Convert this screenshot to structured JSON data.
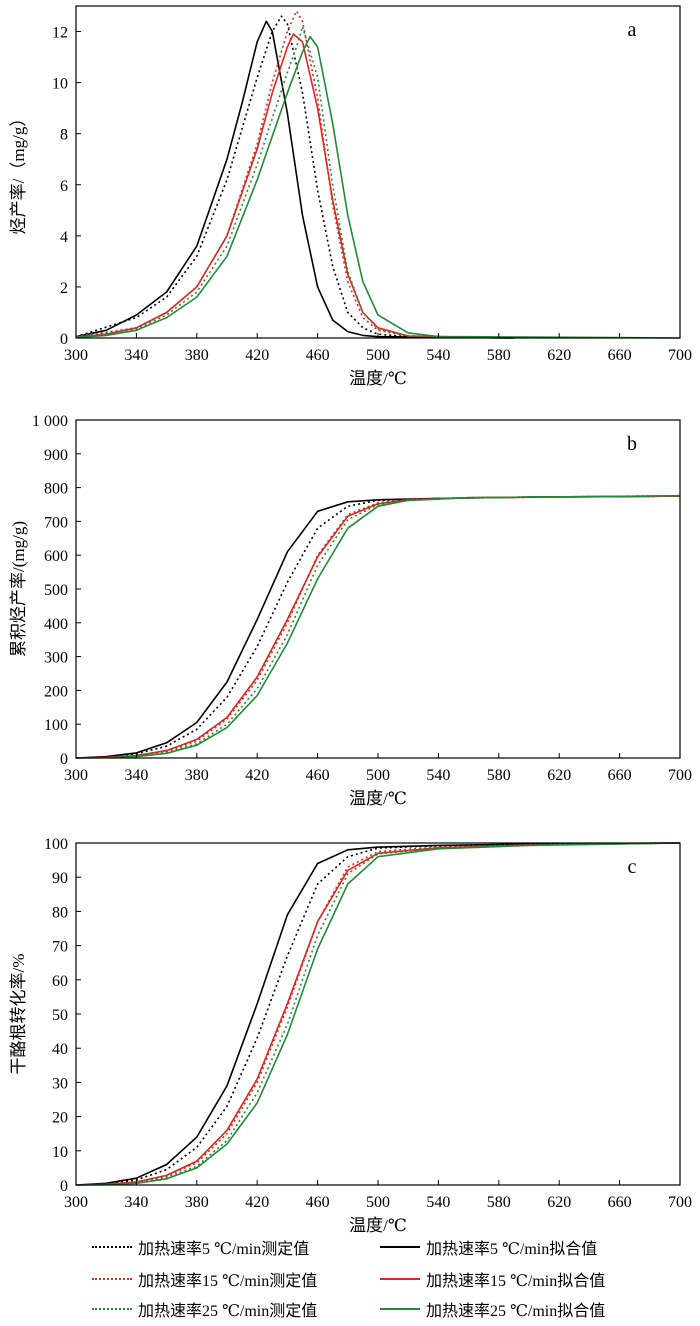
{
  "colors": {
    "black": "#000000",
    "red": "#d42a22",
    "green": "#23893a"
  },
  "chart_data": [
    {
      "type": "line",
      "panel_label": "a",
      "xlabel": "温度/℃",
      "ylabel": "烃产率/（mg/g）",
      "xlim": [
        300,
        700
      ],
      "ylim": [
        0,
        13
      ],
      "xticks": [
        300,
        340,
        380,
        420,
        460,
        500,
        540,
        580,
        620,
        660,
        700
      ],
      "xtick_labels": [
        "300",
        "340",
        "380",
        "420",
        "460",
        "500",
        "540",
        "580",
        "620",
        "660",
        "700"
      ],
      "yticks": [
        0,
        2,
        4,
        6,
        8,
        10,
        12
      ],
      "ytick_labels": [
        "0",
        "2",
        "4",
        "6",
        "8",
        "10",
        "12"
      ],
      "series": [
        {
          "name": "加热速率5 ℃/min测定值",
          "color": "black",
          "style": "dotted",
          "x": [
            300,
            340,
            360,
            380,
            400,
            420,
            430,
            436,
            440,
            450,
            460,
            470,
            480,
            490,
            500,
            520,
            590
          ],
          "y": [
            0.05,
            0.8,
            1.6,
            3.2,
            6.2,
            10.2,
            12.0,
            12.6,
            12.3,
            9.6,
            5.8,
            2.8,
            1.0,
            0.4,
            0.15,
            0.05,
            0.0
          ]
        },
        {
          "name": "加热速率5 ℃/min拟合值",
          "color": "black",
          "style": "solid",
          "x": [
            300,
            320,
            340,
            360,
            380,
            400,
            410,
            420,
            426,
            430,
            440,
            450,
            460,
            470,
            480,
            490,
            500,
            590
          ],
          "y": [
            0.05,
            0.3,
            0.9,
            1.8,
            3.6,
            7.0,
            9.2,
            11.6,
            12.4,
            12.0,
            8.8,
            4.8,
            2.0,
            0.7,
            0.25,
            0.1,
            0.05,
            0.0
          ]
        },
        {
          "name": "加热速率15 ℃/min测定值",
          "color": "red",
          "style": "dotted",
          "x": [
            300,
            340,
            360,
            380,
            400,
            420,
            430,
            440,
            446,
            450,
            460,
            470,
            480,
            490,
            500,
            520,
            590
          ],
          "y": [
            0.05,
            0.4,
            1.0,
            2.0,
            4.0,
            7.6,
            10.0,
            12.0,
            12.8,
            12.4,
            9.4,
            5.2,
            2.2,
            0.8,
            0.3,
            0.08,
            0.0
          ]
        },
        {
          "name": "加热速率15 ℃/min拟合值",
          "color": "red",
          "style": "solid",
          "x": [
            300,
            320,
            340,
            360,
            380,
            400,
            420,
            430,
            440,
            444,
            450,
            460,
            470,
            480,
            490,
            500,
            520,
            590
          ],
          "y": [
            0.03,
            0.15,
            0.4,
            1.0,
            2.0,
            4.0,
            7.4,
            9.6,
            11.4,
            11.9,
            11.6,
            9.0,
            5.4,
            2.5,
            1.0,
            0.4,
            0.08,
            0.0
          ]
        },
        {
          "name": "加热速率25 ℃/min测定值",
          "color": "green",
          "style": "dotted",
          "x": [
            300,
            340,
            360,
            380,
            400,
            420,
            440,
            446,
            450,
            460,
            470,
            480,
            490,
            500,
            520,
            590
          ],
          "y": [
            0.05,
            0.35,
            0.9,
            1.8,
            3.6,
            6.8,
            10.4,
            11.4,
            12.2,
            10.2,
            6.0,
            2.6,
            1.0,
            0.35,
            0.08,
            0.0
          ]
        },
        {
          "name": "加热速率25 ℃/min拟合值",
          "color": "green",
          "style": "solid",
          "x": [
            300,
            320,
            340,
            360,
            380,
            400,
            420,
            440,
            450,
            455,
            460,
            470,
            480,
            490,
            500,
            520,
            540,
            700
          ],
          "y": [
            0.02,
            0.1,
            0.3,
            0.8,
            1.6,
            3.2,
            6.2,
            9.6,
            11.2,
            11.8,
            11.4,
            8.4,
            4.8,
            2.2,
            0.9,
            0.2,
            0.06,
            0.0
          ]
        }
      ]
    },
    {
      "type": "line",
      "panel_label": "b",
      "xlabel": "温度/℃",
      "ylabel": "累积烃产率/(mg/g)",
      "xlim": [
        300,
        700
      ],
      "ylim": [
        0,
        1000
      ],
      "xticks": [
        300,
        340,
        380,
        420,
        460,
        500,
        540,
        580,
        620,
        660,
        700
      ],
      "xtick_labels": [
        "300",
        "340",
        "380",
        "420",
        "460",
        "500",
        "540",
        "580",
        "620",
        "660",
        "700"
      ],
      "yticks": [
        0,
        100,
        200,
        300,
        400,
        500,
        600,
        700,
        800,
        900,
        1000
      ],
      "ytick_labels": [
        "0",
        "100",
        "200",
        "300",
        "400",
        "500",
        "600",
        "700",
        "800",
        "900",
        "1 000"
      ],
      "series": [
        {
          "name": "加热速率5 ℃/min测定值",
          "color": "black",
          "style": "dotted",
          "x": [
            320,
            340,
            360,
            380,
            400,
            420,
            440,
            460,
            480,
            500,
            540,
            600,
            700
          ],
          "y": [
            2,
            12,
            35,
            85,
            180,
            330,
            520,
            680,
            745,
            762,
            768,
            772,
            775
          ]
        },
        {
          "name": "加热速率5 ℃/min拟合值",
          "color": "black",
          "style": "solid",
          "x": [
            300,
            320,
            340,
            360,
            380,
            400,
            420,
            440,
            460,
            480,
            500,
            540,
            600,
            700
          ],
          "y": [
            0,
            4,
            15,
            45,
            105,
            225,
            410,
            610,
            730,
            758,
            764,
            768,
            772,
            775
          ]
        },
        {
          "name": "加热速率15 ℃/min测定值",
          "color": "red",
          "style": "dotted",
          "x": [
            320,
            340,
            360,
            380,
            400,
            420,
            440,
            460,
            480,
            500,
            520,
            560,
            700
          ],
          "y": [
            1,
            6,
            20,
            50,
            115,
            230,
            400,
            600,
            720,
            755,
            765,
            770,
            775
          ]
        },
        {
          "name": "加热速率15 ℃/min拟合值",
          "color": "red",
          "style": "solid",
          "x": [
            300,
            320,
            340,
            360,
            380,
            400,
            420,
            440,
            460,
            480,
            500,
            520,
            560,
            700
          ],
          "y": [
            0,
            2,
            7,
            22,
            55,
            120,
            240,
            410,
            595,
            715,
            752,
            764,
            770,
            775
          ]
        },
        {
          "name": "加热速率25 ℃/min测定值",
          "color": "green",
          "style": "dotted",
          "x": [
            320,
            340,
            360,
            380,
            400,
            420,
            440,
            460,
            480,
            500,
            520,
            560,
            700
          ],
          "y": [
            1,
            5,
            17,
            42,
            100,
            205,
            365,
            570,
            705,
            750,
            763,
            770,
            776
          ]
        },
        {
          "name": "加热速率25 ℃/min拟合值",
          "color": "green",
          "style": "solid",
          "x": [
            300,
            320,
            340,
            360,
            380,
            400,
            420,
            440,
            460,
            480,
            500,
            520,
            560,
            700
          ],
          "y": [
            0,
            1,
            4,
            14,
            38,
            90,
            185,
            340,
            530,
            680,
            745,
            762,
            770,
            776
          ]
        }
      ]
    },
    {
      "type": "line",
      "panel_label": "c",
      "xlabel": "温度/℃",
      "ylabel": "干酪根转化率/%",
      "xlim": [
        300,
        700
      ],
      "ylim": [
        0,
        100
      ],
      "xticks": [
        300,
        340,
        380,
        420,
        460,
        500,
        540,
        580,
        620,
        660,
        700
      ],
      "xtick_labels": [
        "300",
        "340",
        "380",
        "420",
        "460",
        "500",
        "540",
        "580",
        "620",
        "660",
        "700"
      ],
      "yticks": [
        0,
        10,
        20,
        30,
        40,
        50,
        60,
        70,
        80,
        90,
        100
      ],
      "ytick_labels": [
        "0",
        "10",
        "20",
        "30",
        "40",
        "50",
        "60",
        "70",
        "80",
        "90",
        "100"
      ],
      "series": [
        {
          "name": "加热速率5 ℃/min测定值",
          "color": "black",
          "style": "dotted",
          "x": [
            320,
            340,
            360,
            380,
            400,
            420,
            440,
            460,
            480,
            500,
            540,
            600,
            700
          ],
          "y": [
            0.3,
            1.5,
            4.5,
            11,
            23,
            43,
            67,
            88,
            96,
            98.5,
            99.2,
            99.6,
            100
          ]
        },
        {
          "name": "加热速率5 ℃/min拟合值",
          "color": "black",
          "style": "solid",
          "x": [
            300,
            320,
            340,
            360,
            380,
            400,
            420,
            440,
            460,
            480,
            500,
            540,
            600,
            700
          ],
          "y": [
            0,
            0.5,
            2,
            6,
            14,
            29,
            53,
            79,
            94,
            98,
            98.8,
            99.3,
            99.7,
            100
          ]
        },
        {
          "name": "加热速率15 ℃/min测定值",
          "color": "red",
          "style": "dotted",
          "x": [
            320,
            340,
            360,
            380,
            400,
            420,
            440,
            460,
            480,
            500,
            540,
            600,
            700
          ],
          "y": [
            0.1,
            0.8,
            2.6,
            6.5,
            15,
            30,
            52,
            77,
            93,
            97.5,
            98.8,
            99.5,
            100
          ]
        },
        {
          "name": "加热速率15 ℃/min拟合值",
          "color": "red",
          "style": "solid",
          "x": [
            300,
            320,
            340,
            360,
            380,
            400,
            420,
            440,
            460,
            480,
            500,
            540,
            600,
            700
          ],
          "y": [
            0,
            0.2,
            0.9,
            2.8,
            7,
            16,
            31,
            53,
            77,
            92,
            97,
            98.6,
            99.4,
            100
          ]
        },
        {
          "name": "加热速率25 ℃/min测定值",
          "color": "green",
          "style": "dotted",
          "x": [
            320,
            340,
            360,
            380,
            400,
            420,
            440,
            460,
            480,
            500,
            540,
            600,
            700
          ],
          "y": [
            0.1,
            0.6,
            2.2,
            5.5,
            13,
            27,
            47,
            73,
            91,
            96.8,
            98.5,
            99.4,
            100
          ]
        },
        {
          "name": "加热速率25 ℃/min拟合值",
          "color": "green",
          "style": "solid",
          "x": [
            300,
            320,
            340,
            360,
            380,
            400,
            420,
            440,
            460,
            480,
            500,
            540,
            600,
            700
          ],
          "y": [
            0,
            0.1,
            0.5,
            1.8,
            5,
            12,
            24,
            44,
            69,
            88,
            96,
            98.3,
            99.3,
            100
          ]
        }
      ]
    }
  ],
  "legend": [
    {
      "label": "加热速率5 ℃/min测定值",
      "color": "black",
      "style": "dotted"
    },
    {
      "label": "加热速率5 ℃/min拟合值",
      "color": "black",
      "style": "solid"
    },
    {
      "label": "加热速率15 ℃/min测定值",
      "color": "red",
      "style": "dotted"
    },
    {
      "label": "加热速率15 ℃/min拟合值",
      "color": "red",
      "style": "solid"
    },
    {
      "label": "加热速率25 ℃/min测定值",
      "color": "green",
      "style": "dotted"
    },
    {
      "label": "加热速率25 ℃/min拟合值",
      "color": "green",
      "style": "solid"
    }
  ]
}
